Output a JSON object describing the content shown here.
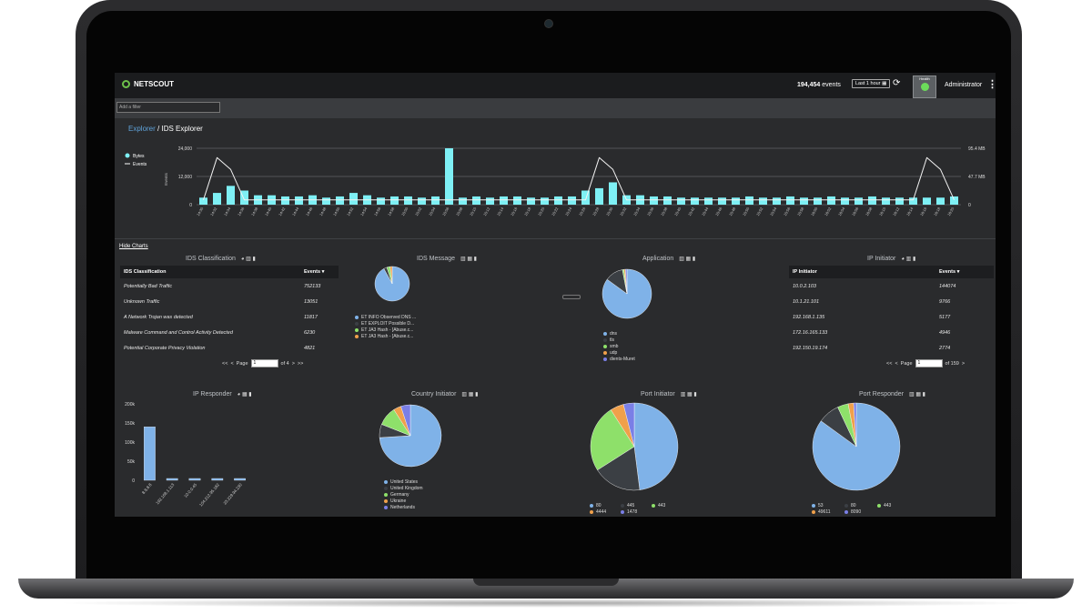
{
  "header": {
    "brand": "NETSCOUT",
    "event_count": "194,454",
    "event_suffix": "events",
    "time_range": "Last 1 hour",
    "health_label": "Health",
    "user": "Administrator"
  },
  "filter": {
    "placeholder": "Add a filter"
  },
  "breadcrumb": {
    "root": "Explorer",
    "separator": " / ",
    "current": "IDS Explorer"
  },
  "hide_charts": "Hide Charts",
  "colors": {
    "accent": "#5fa2d9",
    "bar": "#7ef0f5",
    "blue": "#7fb2e8",
    "dark": "#3b3f44",
    "green": "#8ee06a",
    "orange": "#f0a04b",
    "purple": "#7a7fe6",
    "red": "#e26060"
  },
  "timeline": {
    "legend": [
      "Bytes",
      "Events"
    ],
    "y_left_ticks": [
      "24,000",
      "12,000",
      "0"
    ],
    "y_right_ticks": [
      "95.4 MB",
      "47.7 MB",
      "0"
    ],
    "y_left_label": "Events",
    "x_ticks": [
      "14:30",
      "14:32",
      "14:34",
      "14:36",
      "14:38",
      "14:40",
      "14:42",
      "14:44",
      "14:46",
      "14:48",
      "14:50",
      "14:52",
      "14:54",
      "14:56",
      "14:58",
      "15:00",
      "15:02",
      "15:04",
      "15:06",
      "15:08",
      "15:10",
      "15:12",
      "15:14",
      "15:16",
      "15:18",
      "15:20",
      "15:22",
      "15:24",
      "15:26",
      "15:28",
      "15:30",
      "15:32",
      "15:34",
      "15:36",
      "15:38",
      "15:40",
      "15:42",
      "15:44",
      "15:46",
      "15:48",
      "15:50",
      "15:52",
      "15:54",
      "15:56",
      "15:58",
      "16:00",
      "16:02",
      "16:04",
      "16:06",
      "16:08",
      "16:10",
      "16:12",
      "16:14",
      "16:16",
      "16:18",
      "16:20"
    ]
  },
  "ids_classification": {
    "title": "IDS Classification",
    "col_name": "IDS Classification",
    "col_events": "Events",
    "rows": [
      {
        "name": "Potentially Bad Traffic",
        "events": "752133"
      },
      {
        "name": "Unknown Traffic",
        "events": "13051"
      },
      {
        "name": "A Network Trojan was detected",
        "events": "11817"
      },
      {
        "name": "Malware Command and Control Activity Detected",
        "events": "6230"
      },
      {
        "name": "Potential Corporate Privacy Violation",
        "events": "4821"
      }
    ],
    "page_label": "Page",
    "page_value": "1",
    "page_of": "of 4"
  },
  "ids_message": {
    "title": "IDS Message",
    "legend": [
      "ET INFO Observed DNS ...",
      "ET EXPLOIT Possible D...",
      "ET JA3 Hash - [Abuse.c...",
      "ET JA3 Hash - [Abuse.c..."
    ]
  },
  "application": {
    "title": "Application",
    "legend": [
      "dns",
      "tls",
      "smb",
      "udp",
      "dients-Muret"
    ]
  },
  "ip_initiator": {
    "title": "IP Initiator",
    "col_name": "IP Initiator",
    "col_events": "Events",
    "rows": [
      {
        "name": "10.0.2.103",
        "events": "144074"
      },
      {
        "name": "10.1.21.101",
        "events": "9766"
      },
      {
        "name": "192.168.1.135",
        "events": "5177"
      },
      {
        "name": "172.16.165.133",
        "events": "4946"
      },
      {
        "name": "192.150.19.174",
        "events": "2774"
      }
    ],
    "page_label": "Page",
    "page_value": "1",
    "page_of": "of 159"
  },
  "ip_responder": {
    "title": "IP Responder",
    "y_ticks": [
      "200k",
      "150k",
      "100k",
      "50k",
      "0"
    ]
  },
  "country_initiator": {
    "title": "Country Initiator",
    "legend": [
      "United States",
      "United Kingdom",
      "Germany",
      "Ukraine",
      "Netherlands"
    ]
  },
  "port_initiator": {
    "title": "Port Initiator",
    "legend": [
      "80",
      "445",
      "443",
      "4444",
      "1478"
    ]
  },
  "port_responder": {
    "title": "Port Responder",
    "legend": [
      "53",
      "80",
      "443",
      "49611",
      "8090"
    ]
  },
  "chart_data": [
    {
      "type": "bar",
      "title": "",
      "ylabel": "Events",
      "ylim": [
        0,
        24000
      ],
      "series": [
        {
          "name": "Bytes",
          "values": [
            3000,
            5000,
            8000,
            6000,
            4000,
            4000,
            3500,
            3500,
            4000,
            3000,
            3500,
            5000,
            4000,
            3000,
            3500,
            3500,
            3000,
            3500,
            24000,
            3000,
            3500,
            3000,
            3500,
            3500,
            3000,
            3000,
            3500,
            3500,
            6000,
            7000,
            9500,
            4000,
            4000,
            3500,
            3500,
            3000,
            3000,
            3000,
            3000,
            3000,
            3500,
            3000,
            3000,
            3500,
            3000,
            3000,
            3500,
            3000,
            3000,
            3500,
            3000,
            3000,
            3000,
            3000,
            3000,
            3500
          ]
        },
        {
          "name": "Events",
          "values": [
            2000,
            20000,
            15000,
            2000,
            2000,
            2000,
            2000,
            2000,
            2000,
            2000,
            2000,
            2000,
            2000,
            2000,
            2000,
            2000,
            2000,
            2000,
            2000,
            2000,
            2000,
            2000,
            2000,
            2000,
            2000,
            2000,
            2000,
            2000,
            2000,
            20000,
            15000,
            2000,
            2000,
            2000,
            2000,
            2000,
            2000,
            2000,
            2000,
            2000,
            2000,
            2000,
            2000,
            2000,
            2000,
            2000,
            2000,
            2000,
            2000,
            2000,
            2000,
            2000,
            2000,
            20000,
            15000,
            2000
          ]
        }
      ]
    },
    {
      "type": "bar",
      "title": "IP Responder",
      "categories": [
        "8.8.8.8",
        "192.168.1.113",
        "10.0.0.45",
        "104.212.95.182",
        "23.229.94.230"
      ],
      "values": [
        140000,
        4000,
        3500,
        3000,
        3000
      ],
      "ylim": [
        0,
        200000
      ]
    },
    {
      "type": "pie",
      "title": "IDS Message",
      "labels": [
        "ET INFO Observed DNS ...",
        "ET EXPLOIT Possible D...",
        "ET JA3 Hash - [Abuse.c...",
        "ET JA3 Hash - [Abuse.c..."
      ],
      "values": [
        92,
        3,
        3,
        2
      ]
    },
    {
      "type": "pie",
      "title": "Application",
      "labels": [
        "dns",
        "tls",
        "smb",
        "udp",
        "dients-Muret"
      ],
      "values": [
        85,
        12,
        1,
        1,
        1
      ]
    },
    {
      "type": "pie",
      "title": "Country Initiator",
      "labels": [
        "United States",
        "United Kingdom",
        "Germany",
        "Ukraine",
        "Netherlands"
      ],
      "values": [
        74,
        7,
        10,
        4,
        5
      ]
    },
    {
      "type": "pie",
      "title": "Port Initiator",
      "labels": [
        "80",
        "445",
        "443",
        "4444",
        "1478"
      ],
      "values": [
        48,
        18,
        25,
        5,
        4
      ]
    },
    {
      "type": "pie",
      "title": "Port Responder",
      "labels": [
        "53",
        "80",
        "443",
        "49611",
        "8090"
      ],
      "values": [
        85,
        8,
        4,
        2,
        1
      ]
    }
  ]
}
